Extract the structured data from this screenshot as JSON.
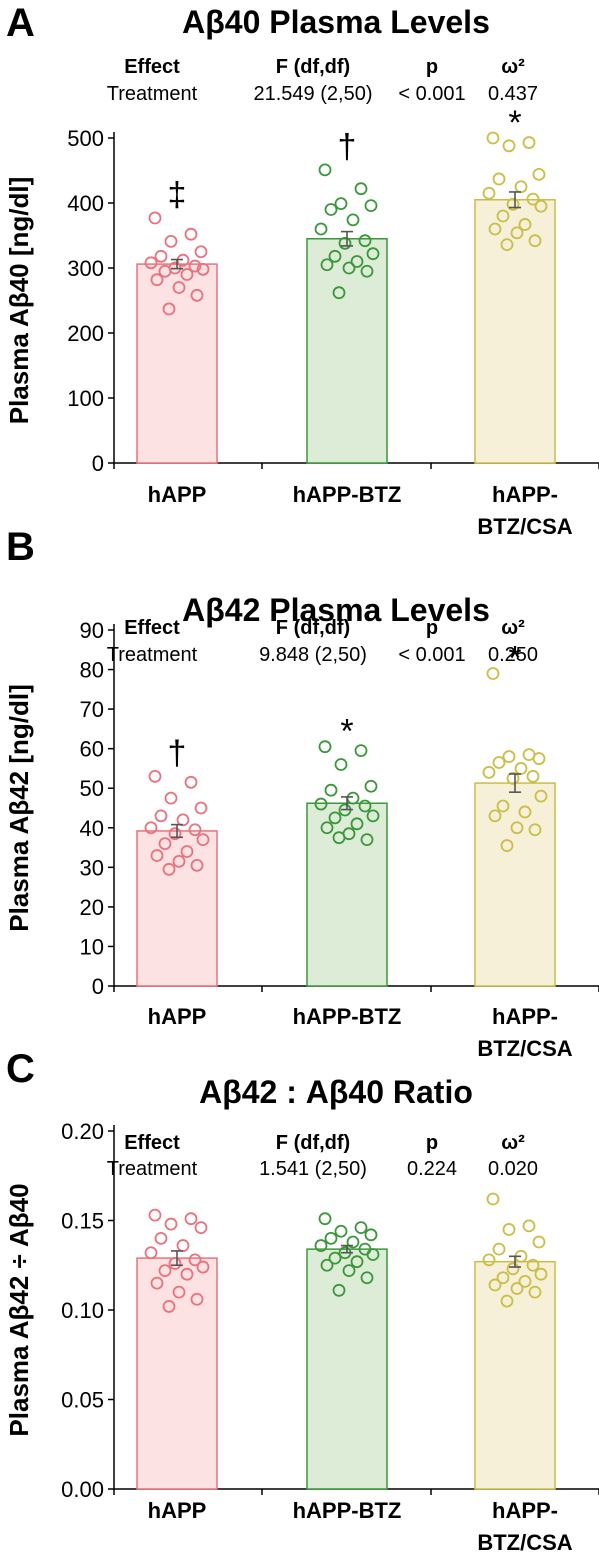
{
  "colors": {
    "hAPP": {
      "stroke": "#e8727d",
      "fill": "#fde2e3"
    },
    "hAPP-BTZ": {
      "stroke": "#3a983a",
      "fill": "#dcecd6"
    },
    "hAPP-BTZ/CSA": {
      "stroke": "#cbbd45",
      "fill": "#f6f0d8"
    },
    "axis": "#000000",
    "error": "#555555"
  },
  "chart_data": [
    {
      "type": "bar",
      "panel": "A",
      "title": "Aβ40 Plasma Levels",
      "ylabel": "Plasma Aβ40 [ng/dl]",
      "xlabel": "",
      "ylim": [
        0,
        500
      ],
      "yticks": [
        0,
        100,
        200,
        300,
        400,
        500
      ],
      "ytick_labels": [
        "0",
        "100",
        "200",
        "300",
        "400",
        "500"
      ],
      "categories": [
        "hAPP",
        "hAPP-BTZ",
        "hAPP-BTZ/CSA"
      ],
      "category_labels": [
        [
          "hAPP"
        ],
        [
          "hAPP-BTZ"
        ],
        [
          "hAPP-",
          "BTZ/CSA"
        ]
      ],
      "values": [
        306,
        345,
        405
      ],
      "sem": [
        7,
        11,
        12
      ],
      "significance": [
        "‡",
        "†",
        "*"
      ],
      "points": [
        [
          377,
          352,
          341,
          325,
          318,
          312,
          308,
          303,
          300,
          298,
          295,
          290,
          282,
          270,
          258,
          237
        ],
        [
          451,
          422,
          399,
          396,
          390,
          374,
          360,
          342,
          338,
          322,
          318,
          310,
          305,
          300,
          295,
          262
        ],
        [
          500,
          493,
          488,
          444,
          437,
          425,
          415,
          406,
          398,
          395,
          380,
          367,
          360,
          354,
          342,
          336
        ]
      ],
      "stats_table": {
        "headers": [
          "Effect",
          "F (df,df)",
          "p",
          "ω²"
        ],
        "row": [
          "Treatment",
          "21.549 (2,50)",
          "< 0.001",
          "0.437"
        ]
      }
    },
    {
      "type": "bar",
      "panel": "B",
      "title": "Aβ42 Plasma Levels",
      "ylabel": "Plasma Aβ42 [ng/dl]",
      "xlabel": "",
      "ylim": [
        0,
        90
      ],
      "yticks": [
        0,
        10,
        20,
        30,
        40,
        50,
        60,
        70,
        80,
        90
      ],
      "ytick_labels": [
        "0",
        "10",
        "20",
        "30",
        "40",
        "50",
        "60",
        "70",
        "80",
        "90"
      ],
      "categories": [
        "hAPP",
        "hAPP-BTZ",
        "hAPP-BTZ/CSA"
      ],
      "category_labels": [
        [
          "hAPP"
        ],
        [
          "hAPP-BTZ"
        ],
        [
          "hAPP-",
          "BTZ/CSA"
        ]
      ],
      "values": [
        39.2,
        46.2,
        51.3
      ],
      "sem": [
        1.6,
        1.6,
        2.3
      ],
      "significance": [
        "†",
        "*",
        "*"
      ],
      "points": [
        [
          53,
          51.5,
          47.5,
          45,
          43,
          42,
          40,
          39.5,
          38.5,
          37,
          36,
          34,
          33,
          31.5,
          30.5,
          29.5
        ],
        [
          60.5,
          59.5,
          56,
          50.5,
          49.5,
          47.5,
          46,
          45.5,
          44.5,
          43,
          42.5,
          41,
          40,
          38.5,
          37,
          37.5
        ],
        [
          79,
          58.5,
          58,
          57.5,
          56.5,
          55,
          54,
          53,
          52.5,
          48,
          45.5,
          44,
          43,
          40,
          39.5,
          35.5
        ]
      ],
      "stats_table": {
        "headers": [
          "Effect",
          "F (df,df)",
          "p",
          "ω²"
        ],
        "row": [
          "Treatment",
          "9.848 (2,50)",
          "< 0.001",
          "0.250"
        ]
      }
    },
    {
      "type": "bar",
      "panel": "C",
      "title": "Aβ42 : Aβ40 Ratio",
      "ylabel": "Plasma Aβ42 ÷ Aβ40",
      "xlabel": "",
      "ylim": [
        0,
        0.2
      ],
      "yticks": [
        0,
        0.05,
        0.1,
        0.15,
        0.2
      ],
      "ytick_labels": [
        "0.00",
        "0.05",
        "0.10",
        "0.15",
        "0.20"
      ],
      "categories": [
        "hAPP",
        "hAPP-BTZ",
        "hAPP-BTZ/CSA"
      ],
      "category_labels": [
        [
          "hAPP"
        ],
        [
          "hAPP-BTZ"
        ],
        [
          "hAPP-",
          "BTZ/CSA"
        ]
      ],
      "values": [
        0.129,
        0.134,
        0.127
      ],
      "sem": [
        0.004,
        0.002,
        0.003
      ],
      "significance": [
        "",
        "",
        ""
      ],
      "points": [
        [
          0.153,
          0.151,
          0.148,
          0.146,
          0.14,
          0.136,
          0.132,
          0.128,
          0.126,
          0.124,
          0.122,
          0.12,
          0.115,
          0.11,
          0.106,
          0.102
        ],
        [
          0.151,
          0.146,
          0.144,
          0.142,
          0.14,
          0.138,
          0.136,
          0.134,
          0.132,
          0.131,
          0.129,
          0.127,
          0.125,
          0.122,
          0.118,
          0.111
        ],
        [
          0.162,
          0.147,
          0.145,
          0.138,
          0.134,
          0.13,
          0.128,
          0.125,
          0.123,
          0.12,
          0.118,
          0.116,
          0.114,
          0.112,
          0.11,
          0.105
        ]
      ],
      "stats_table": {
        "headers": [
          "Effect",
          "F (df,df)",
          "p",
          "ω²"
        ],
        "row": [
          "Treatment",
          "1.541 (2,50)",
          "0.224",
          "0.020"
        ]
      }
    }
  ]
}
